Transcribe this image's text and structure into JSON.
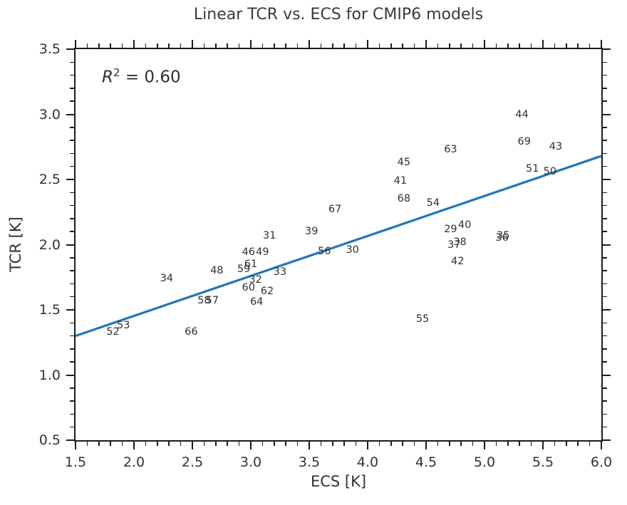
{
  "figure": {
    "title": "Linear TCR vs. ECS for CMIP6 models",
    "x_axis_label": "ECS [K]",
    "y_axis_label": "TCR [K]",
    "r_squared": {
      "symbol": "R",
      "exponent": "2",
      "rest": " = 0.60"
    }
  },
  "colors": {
    "fit_line": "#1f77b4",
    "spine": "#1b1b1b",
    "text": "#333333"
  },
  "chart_data": {
    "type": "scatter",
    "title": "Linear TCR vs. ECS for CMIP6 models",
    "xlabel": "ECS [K]",
    "ylabel": "TCR [K]",
    "xlim": [
      1.5,
      6.0
    ],
    "ylim": [
      0.5,
      3.5
    ],
    "x_major_ticks": [
      1.5,
      2.0,
      2.5,
      3.0,
      3.5,
      4.0,
      4.5,
      5.0,
      5.5,
      6.0
    ],
    "y_major_ticks": [
      0.5,
      1.0,
      1.5,
      2.0,
      2.5,
      3.0,
      3.5
    ],
    "minor_tick_step": 0.1,
    "grid": false,
    "legend": null,
    "marker_style": "numeric-model-labels",
    "annotation": "R² = 0.60",
    "r_squared_value": 0.6,
    "fit_line": {
      "x": [
        1.5,
        6.0
      ],
      "y": [
        1.3,
        2.68
      ],
      "color": "#1f77b4",
      "width": 3.2
    },
    "points": [
      {
        "label": "29",
        "x": 4.71,
        "y": 2.12
      },
      {
        "label": "30",
        "x": 3.87,
        "y": 1.96
      },
      {
        "label": "31",
        "x": 3.16,
        "y": 2.07
      },
      {
        "label": "32",
        "x": 3.04,
        "y": 1.73
      },
      {
        "label": "33",
        "x": 3.25,
        "y": 1.79
      },
      {
        "label": "34",
        "x": 2.28,
        "y": 1.74
      },
      {
        "label": "35",
        "x": 5.16,
        "y": 2.07
      },
      {
        "label": "36",
        "x": 5.15,
        "y": 2.05
      },
      {
        "label": "37",
        "x": 4.74,
        "y": 2.0
      },
      {
        "label": "38",
        "x": 4.79,
        "y": 2.02
      },
      {
        "label": "39",
        "x": 3.52,
        "y": 2.1
      },
      {
        "label": "40",
        "x": 4.83,
        "y": 2.15
      },
      {
        "label": "41",
        "x": 4.28,
        "y": 2.49
      },
      {
        "label": "42",
        "x": 4.77,
        "y": 1.87
      },
      {
        "label": "43",
        "x": 5.61,
        "y": 2.75
      },
      {
        "label": "44",
        "x": 5.32,
        "y": 3.0
      },
      {
        "label": "45",
        "x": 4.31,
        "y": 2.63
      },
      {
        "label": "46",
        "x": 2.98,
        "y": 1.94
      },
      {
        "label": "48",
        "x": 2.71,
        "y": 1.8
      },
      {
        "label": "49",
        "x": 3.1,
        "y": 1.94
      },
      {
        "label": "50",
        "x": 5.56,
        "y": 2.56
      },
      {
        "label": "51",
        "x": 5.41,
        "y": 2.58
      },
      {
        "label": "52",
        "x": 1.82,
        "y": 1.33
      },
      {
        "label": "53",
        "x": 1.91,
        "y": 1.38
      },
      {
        "label": "54",
        "x": 4.56,
        "y": 2.32
      },
      {
        "label": "55",
        "x": 4.47,
        "y": 1.43
      },
      {
        "label": "56",
        "x": 3.63,
        "y": 1.95
      },
      {
        "label": "57",
        "x": 2.67,
        "y": 1.57
      },
      {
        "label": "58",
        "x": 2.6,
        "y": 1.57
      },
      {
        "label": "59",
        "x": 2.94,
        "y": 1.81
      },
      {
        "label": "60",
        "x": 2.98,
        "y": 1.67
      },
      {
        "label": "61",
        "x": 3.0,
        "y": 1.85
      },
      {
        "label": "62",
        "x": 3.14,
        "y": 1.64
      },
      {
        "label": "63",
        "x": 4.71,
        "y": 2.73
      },
      {
        "label": "64",
        "x": 3.05,
        "y": 1.56
      },
      {
        "label": "66",
        "x": 2.49,
        "y": 1.33
      },
      {
        "label": "67",
        "x": 3.72,
        "y": 2.27
      },
      {
        "label": "68",
        "x": 4.31,
        "y": 2.35
      },
      {
        "label": "69",
        "x": 5.34,
        "y": 2.79
      }
    ]
  }
}
